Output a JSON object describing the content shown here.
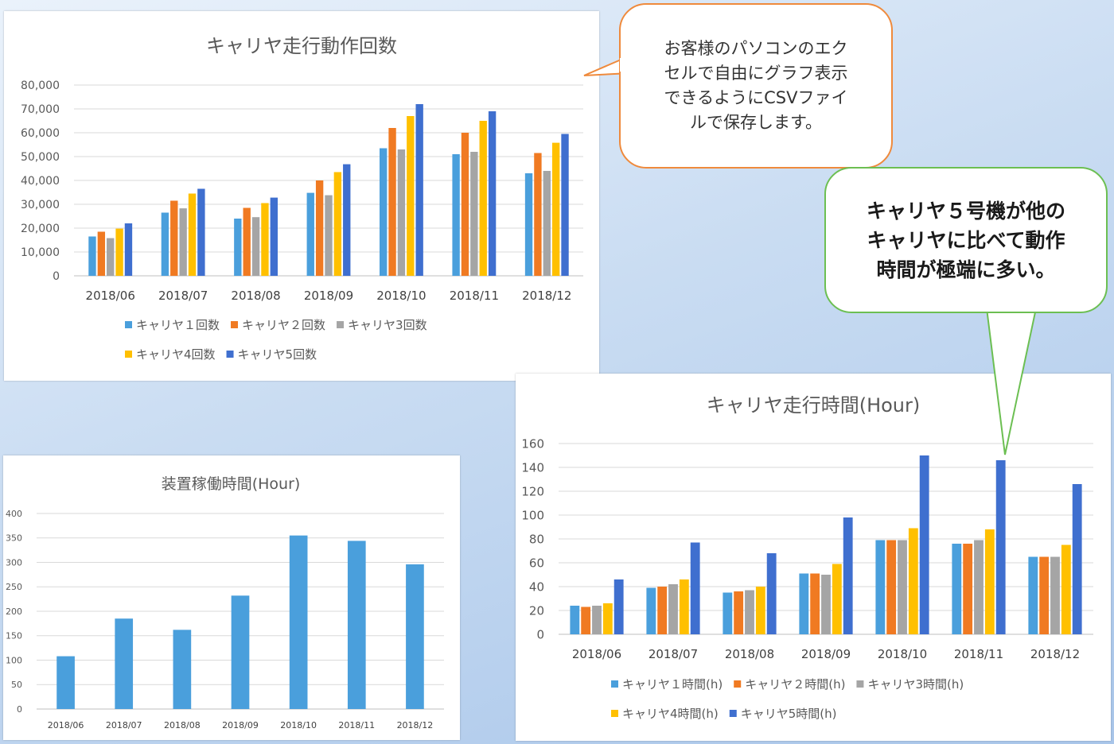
{
  "callouts": {
    "csv_note": "お客様のパソコンのエク\nセルで自由にグラフ表示\nできるようにCSVファイ\nルで保存します。",
    "carrier5_note": "キャリヤ５号機が他の\nキャリヤに比べて動作\n時間が極端に多い。"
  },
  "chart_data": [
    {
      "id": "counts",
      "type": "bar",
      "title": "キャリヤ走行動作回数",
      "categories": [
        "2018/06",
        "2018/07",
        "2018/08",
        "2018/09",
        "2018/10",
        "2018/11",
        "2018/12"
      ],
      "ylim": [
        0,
        80000
      ],
      "yticks": [
        "0",
        "10,000",
        "20,000",
        "30,000",
        "40,000",
        "50,000",
        "60,000",
        "70,000",
        "80,000"
      ],
      "grid": true,
      "legend_position": "bottom",
      "series": [
        {
          "name": "キャリヤ１回数",
          "color": "#4a9fdc",
          "values": [
            16500,
            26500,
            24000,
            34800,
            53500,
            51000,
            43000
          ]
        },
        {
          "name": "キャリヤ２回数",
          "color": "#f07a22",
          "values": [
            18500,
            31500,
            28500,
            40000,
            62000,
            60000,
            51500
          ]
        },
        {
          "name": "キャリヤ3回数",
          "color": "#a5a5a5",
          "values": [
            15800,
            28300,
            24600,
            33800,
            53000,
            52000,
            44000
          ]
        },
        {
          "name": "キャリヤ4回数",
          "color": "#ffc000",
          "values": [
            19800,
            34500,
            30500,
            43500,
            67000,
            65000,
            55800
          ]
        },
        {
          "name": "キャリヤ5回数",
          "color": "#3f6fcf",
          "values": [
            22000,
            36500,
            32800,
            46800,
            72000,
            69000,
            59500
          ]
        }
      ]
    },
    {
      "id": "device",
      "type": "bar",
      "title": "装置稼働時間(Hour)",
      "categories": [
        "2018/06",
        "2018/07",
        "2018/08",
        "2018/09",
        "2018/10",
        "2018/11",
        "2018/12"
      ],
      "ylim": [
        0,
        400
      ],
      "yticks": [
        "0",
        "50",
        "100",
        "150",
        "200",
        "250",
        "300",
        "350",
        "400"
      ],
      "grid": true,
      "series": [
        {
          "name": "",
          "color": "#4a9fdc",
          "values": [
            108,
            185,
            162,
            232,
            355,
            344,
            296
          ]
        }
      ]
    },
    {
      "id": "hours",
      "type": "bar",
      "title": "キャリヤ走行時間(Hour)",
      "categories": [
        "2018/06",
        "2018/07",
        "2018/08",
        "2018/09",
        "2018/10",
        "2018/11",
        "2018/12"
      ],
      "ylim": [
        0,
        160
      ],
      "yticks": [
        "0",
        "20",
        "40",
        "60",
        "80",
        "100",
        "120",
        "140",
        "160"
      ],
      "grid": true,
      "legend_position": "bottom",
      "series": [
        {
          "name": "キャリヤ１時間(h)",
          "color": "#4a9fdc",
          "values": [
            24,
            39,
            35,
            51,
            79,
            76,
            65
          ]
        },
        {
          "name": "キャリヤ２時間(h)",
          "color": "#f07a22",
          "values": [
            23,
            40,
            36,
            51,
            79,
            76,
            65
          ]
        },
        {
          "name": "キャリヤ3時間(h)",
          "color": "#a5a5a5",
          "values": [
            24,
            42,
            37,
            50,
            79,
            79,
            65
          ]
        },
        {
          "name": "キャリヤ4時間(h)",
          "color": "#ffc000",
          "values": [
            26,
            46,
            40,
            59,
            89,
            88,
            75
          ]
        },
        {
          "name": "キャリヤ5時間(h)",
          "color": "#3f6fcf",
          "values": [
            46,
            77,
            68,
            98,
            150,
            146,
            126
          ]
        }
      ]
    }
  ]
}
